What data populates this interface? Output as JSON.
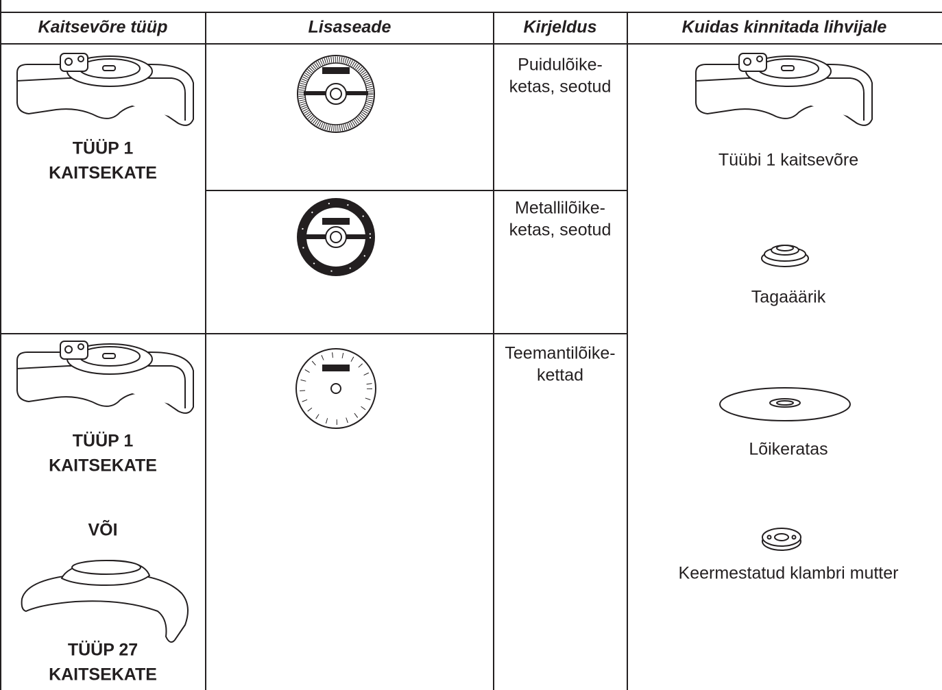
{
  "table": {
    "headers": [
      "Kaitsevõre tüüp",
      "Lisaseade",
      "Kirjeldus",
      "Kuidas kinnitada lihvijale"
    ],
    "guard_cells": [
      [
        "TÜÜP 1",
        "KAITSEKATE"
      ],
      [
        "TÜÜP 1",
        "KAITSEKATE",
        "VÕI",
        "TÜÜP 27",
        "KAITSEKATE"
      ]
    ],
    "descriptions": [
      [
        "Puidulõike-",
        "ketas, seotud"
      ],
      [
        "Metallilõike-",
        "ketas, seotud"
      ],
      [
        "Teemantilõike-",
        "kettad"
      ]
    ],
    "mounting": [
      "Tüübi 1 kaitsevõre",
      "Tagaäärik",
      "Lõikeratas",
      "Keermestatud klambri mutter"
    ]
  }
}
